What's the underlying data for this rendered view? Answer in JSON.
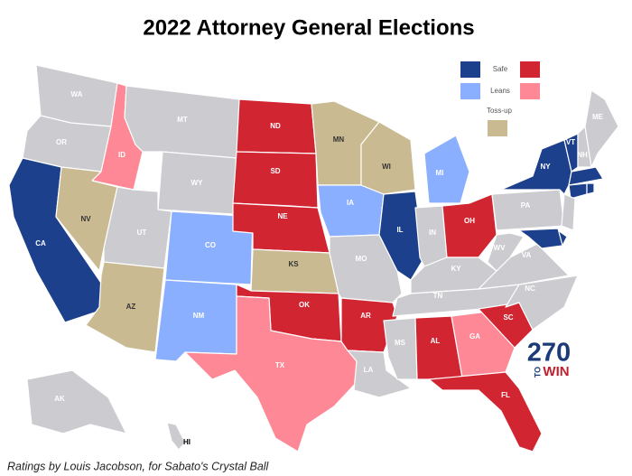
{
  "title": "2022 Attorney General Elections",
  "legend": [
    {
      "label": "Safe",
      "colors": [
        "#1c408c",
        "#d22532"
      ]
    },
    {
      "label": "Leans",
      "colors": [
        "#8aafff",
        "#ff8896"
      ]
    },
    {
      "label": "Toss-up",
      "colors": [
        "#c9ba92"
      ]
    }
  ],
  "states": [
    {
      "label": "WA",
      "color": "#cbcbd0"
    },
    {
      "label": "OR",
      "color": "#cbcbd0"
    },
    {
      "label": "CA",
      "color": "#1c408c"
    },
    {
      "label": "ID",
      "color": "#ff8896"
    },
    {
      "label": "NV",
      "color": "#c9ba92"
    },
    {
      "label": "MT",
      "color": "#cbcbd0"
    },
    {
      "label": "WY",
      "color": "#cbcbd0"
    },
    {
      "label": "UT",
      "color": "#cbcbd0"
    },
    {
      "label": "AZ",
      "color": "#c9ba92"
    },
    {
      "label": "CO",
      "color": "#8aafff"
    },
    {
      "label": "NM",
      "color": "#8aafff"
    },
    {
      "label": "ND",
      "color": "#d22532"
    },
    {
      "label": "SD",
      "color": "#d22532"
    },
    {
      "label": "NE",
      "color": "#d22532"
    },
    {
      "label": "KS",
      "color": "#c9ba92"
    },
    {
      "label": "OK",
      "color": "#d22532"
    },
    {
      "label": "TX",
      "color": "#ff8896"
    },
    {
      "label": "MN",
      "color": "#c9ba92"
    },
    {
      "label": "IA",
      "color": "#8aafff"
    },
    {
      "label": "MO",
      "color": "#cbcbd0"
    },
    {
      "label": "AR",
      "color": "#d22532"
    },
    {
      "label": "LA",
      "color": "#cbcbd0"
    },
    {
      "label": "WI",
      "color": "#c9ba92"
    },
    {
      "label": "IL",
      "color": "#1c408c"
    },
    {
      "label": "MI",
      "color": "#8aafff"
    },
    {
      "label": "IN",
      "color": "#cbcbd0"
    },
    {
      "label": "OH",
      "color": "#d22532"
    },
    {
      "label": "KY",
      "color": "#cbcbd0"
    },
    {
      "label": "TN",
      "color": "#cbcbd0"
    },
    {
      "label": "MS",
      "color": "#cbcbd0"
    },
    {
      "label": "AL",
      "color": "#d22532"
    },
    {
      "label": "GA",
      "color": "#ff8896"
    },
    {
      "label": "FL",
      "color": "#d22532"
    },
    {
      "label": "SC",
      "color": "#d22532"
    },
    {
      "label": "NC",
      "color": "#cbcbd0"
    },
    {
      "label": "VA",
      "color": "#cbcbd0"
    },
    {
      "label": "WV",
      "color": "#cbcbd0"
    },
    {
      "label": "PA",
      "color": "#cbcbd0"
    },
    {
      "label": "NY",
      "color": "#1c408c"
    },
    {
      "label": "VT",
      "color": "#1c408c"
    },
    {
      "label": "NH",
      "color": "#cbcbd0"
    },
    {
      "label": "ME",
      "color": "#cbcbd0"
    },
    {
      "label": null,
      "color": "#1c408c"
    },
    {
      "label": null,
      "color": "#1c408c"
    },
    {
      "label": null,
      "color": "#1c408c"
    },
    {
      "label": null,
      "color": "#cbcbd0"
    },
    {
      "label": null,
      "color": "#1c408c"
    },
    {
      "label": null,
      "color": "#1c408c"
    },
    {
      "label": "AK",
      "color": "#cbcbd0"
    },
    {
      "label": "HI",
      "color": "#cbcbd0"
    }
  ],
  "logo": {
    "number": "270",
    "to": "TO",
    "win": "WIN"
  },
  "credit": "Ratings by Louis Jacobson, for Sabato's Crystal Ball"
}
